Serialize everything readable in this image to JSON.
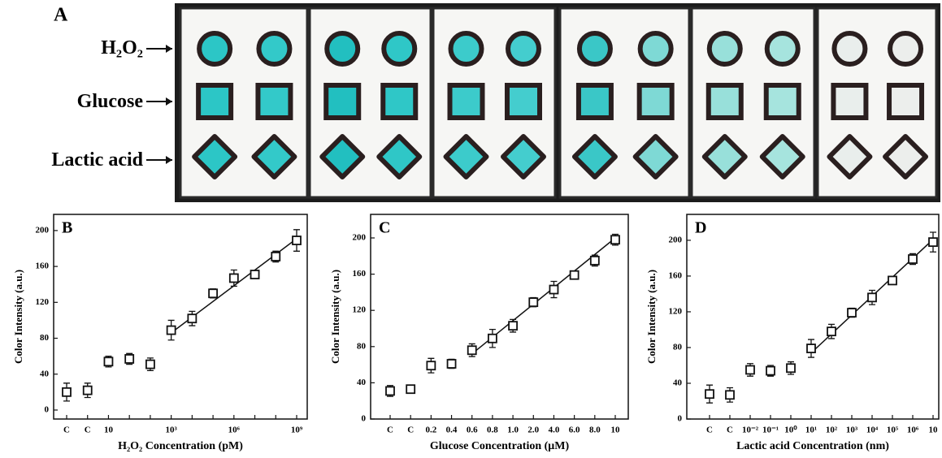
{
  "panel_a": {
    "label": "A",
    "row_labels": [
      "H₂O₂",
      "Glucose",
      "Lactic acid"
    ]
  },
  "chart_data": [
    {
      "type": "scatter",
      "panel_label": "B",
      "xlabel": "H₂O₂ Concentration (pM)",
      "ylabel": "Color Intensity (a.u.)",
      "categories": [
        "C",
        "C",
        "10",
        null,
        null,
        "10³",
        null,
        null,
        "10⁶",
        null,
        null,
        "10⁹"
      ],
      "values": [
        20,
        22,
        54,
        57,
        51,
        89,
        102,
        130,
        147,
        151,
        171,
        189
      ],
      "errors": [
        10,
        8,
        6,
        6,
        7,
        11,
        8,
        5,
        9,
        4,
        6,
        12
      ],
      "fit": {
        "x": [
          5,
          11
        ],
        "y": [
          86,
          191
        ]
      },
      "color": "#111111",
      "ylim": [
        -10,
        218
      ],
      "yticks": [
        0,
        40,
        80,
        120,
        160,
        200
      ]
    },
    {
      "type": "scatter",
      "panel_label": "C",
      "xlabel": "Glucose Concentration (μM)",
      "ylabel": "Color Intensity (a.u.)",
      "categories": [
        "C",
        "C",
        "0.2",
        "0.4",
        "0.6",
        "0.8",
        "1.0",
        "2.0",
        "4.0",
        "6.0",
        "8.0",
        "10"
      ],
      "values": [
        31,
        33,
        59,
        61,
        76,
        89,
        103,
        129,
        143,
        159,
        175,
        198
      ],
      "errors": [
        6,
        4,
        8,
        5,
        7,
        10,
        7,
        5,
        9,
        4,
        6,
        6
      ],
      "fit": {
        "x": [
          4,
          11
        ],
        "y": [
          72,
          200
        ]
      },
      "color": "#111111",
      "ylim": [
        0,
        226
      ],
      "yticks": [
        0,
        40,
        80,
        120,
        160,
        200
      ]
    },
    {
      "type": "scatter",
      "panel_label": "D",
      "xlabel": "Lactic acid Concentration (nm)",
      "ylabel": "Color Intensity (a.u.)",
      "categories": [
        "C",
        "C",
        "10⁻²",
        "10⁻¹",
        "10⁰",
        "10¹",
        "10²",
        "10³",
        "10⁴",
        "10⁵",
        "10⁶",
        "10"
      ],
      "values": [
        28,
        27,
        55,
        54,
        57,
        79,
        98,
        119,
        136,
        155,
        179,
        198
      ],
      "errors": [
        10,
        8,
        7,
        6,
        7,
        10,
        8,
        5,
        8,
        3,
        6,
        11
      ],
      "fit": {
        "x": [
          5,
          11
        ],
        "y": [
          74,
          201
        ]
      },
      "color": "#111111",
      "ylim": [
        0,
        229
      ],
      "yticks": [
        0,
        40,
        80,
        120,
        160,
        200
      ]
    }
  ]
}
